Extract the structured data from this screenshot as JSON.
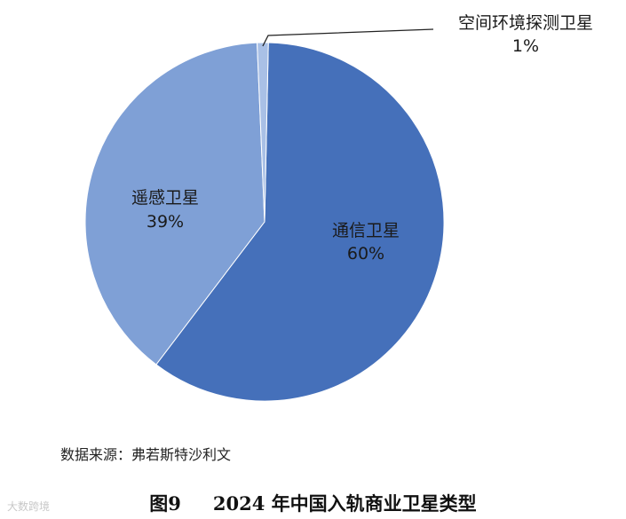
{
  "chart_data": {
    "type": "pie",
    "slices": [
      {
        "label": "通信卫星",
        "value": 60,
        "value_label": "60%",
        "color": "#4570ba"
      },
      {
        "label": "遥感卫星",
        "value": 39,
        "value_label": "39%",
        "color": "#7fa0d6"
      },
      {
        "label": "空间环境探测卫星",
        "value": 1,
        "value_label": "1%",
        "color": "#a9c0e6"
      }
    ]
  },
  "source": "数据来源：弗若斯特沙利文",
  "caption": {
    "number": "图9",
    "title": "2024 年中国入轨商业卫星类型"
  },
  "watermark": "大数跨境"
}
